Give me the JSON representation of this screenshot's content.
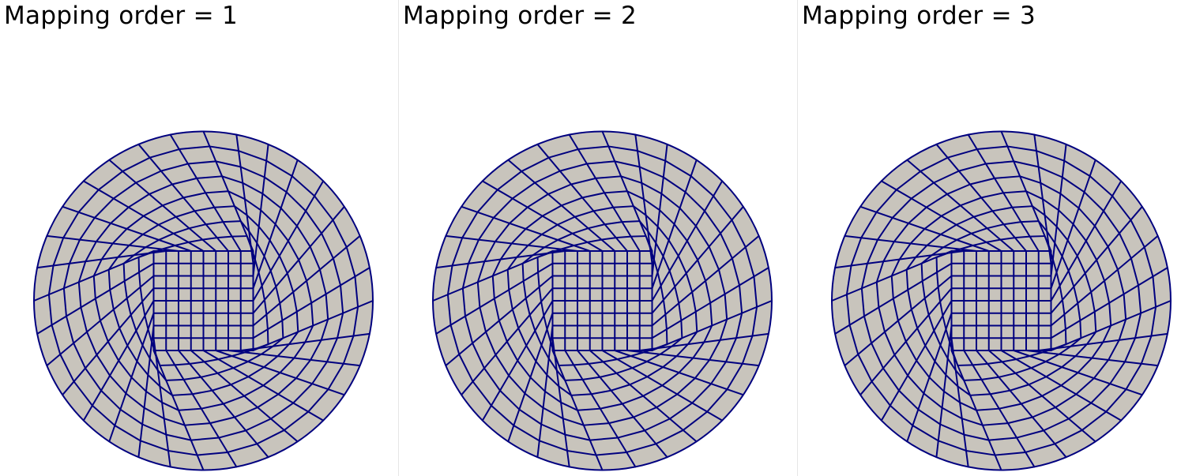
{
  "panels": [
    {
      "title": "Mapping order = 1",
      "mapping_order": 1
    },
    {
      "title": "Mapping order = 2",
      "mapping_order": 2
    },
    {
      "title": "Mapping order = 3",
      "mapping_order": 3
    }
  ],
  "mesh": {
    "type": "quadrilateral mesh of a disk",
    "inner_block_cells_per_side": 8,
    "radial_layers": 8,
    "cells_around_circumference": 32
  },
  "colors": {
    "background": "#ffffff",
    "cell_fill": "#c8c4bc",
    "edge": "#00007f",
    "divider": "#e6e6e6"
  }
}
